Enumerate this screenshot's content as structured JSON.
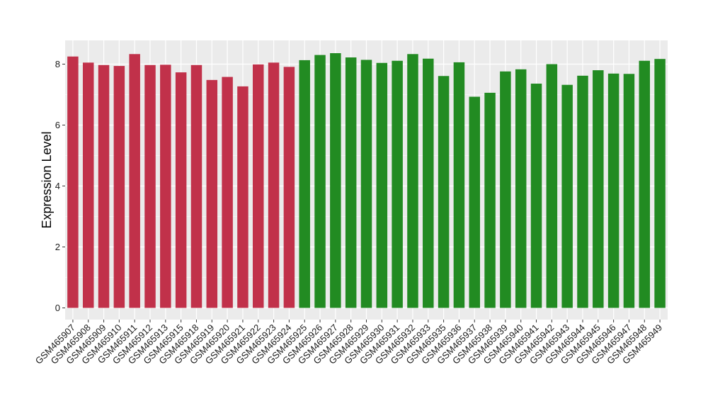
{
  "chart_data": {
    "type": "bar",
    "ylabel": "Expression Level",
    "xlabel": "",
    "ylim": [
      0,
      8.8
    ],
    "yticks": [
      0,
      2,
      4,
      6,
      8
    ],
    "grid": true,
    "colors": {
      "group1": "#c1314a",
      "group2": "#228b22",
      "panel": "#ebebeb",
      "grid": "#ffffff"
    },
    "categories": [
      "GSM465907",
      "GSM465908",
      "GSM465909",
      "GSM465910",
      "GSM465911",
      "GSM465912",
      "GSM465913",
      "GSM465915",
      "GSM465918",
      "GSM465919",
      "GSM465920",
      "GSM465921",
      "GSM465922",
      "GSM465923",
      "GSM465924",
      "GSM465925",
      "GSM465926",
      "GSM465927",
      "GSM465928",
      "GSM465929",
      "GSM465930",
      "GSM465931",
      "GSM465932",
      "GSM465933",
      "GSM465935",
      "GSM465936",
      "GSM465937",
      "GSM465938",
      "GSM465939",
      "GSM465940",
      "GSM465941",
      "GSM465942",
      "GSM465943",
      "GSM465944",
      "GSM465945",
      "GSM465946",
      "GSM465947",
      "GSM465948",
      "GSM465949"
    ],
    "values": [
      8.25,
      8.05,
      7.97,
      7.94,
      8.33,
      7.97,
      7.98,
      7.73,
      7.97,
      7.48,
      7.58,
      7.27,
      7.99,
      8.05,
      7.91,
      8.13,
      8.3,
      8.36,
      8.22,
      8.14,
      8.04,
      8.11,
      8.33,
      8.18,
      7.61,
      8.06,
      6.93,
      7.06,
      7.76,
      7.83,
      7.36,
      8.0,
      7.32,
      7.62,
      7.8,
      7.69,
      7.68,
      8.11,
      8.17
    ],
    "groups": [
      1,
      1,
      1,
      1,
      1,
      1,
      1,
      1,
      1,
      1,
      1,
      1,
      1,
      1,
      1,
      2,
      2,
      2,
      2,
      2,
      2,
      2,
      2,
      2,
      2,
      2,
      2,
      2,
      2,
      2,
      2,
      2,
      2,
      2,
      2,
      2,
      2,
      2,
      2
    ]
  }
}
